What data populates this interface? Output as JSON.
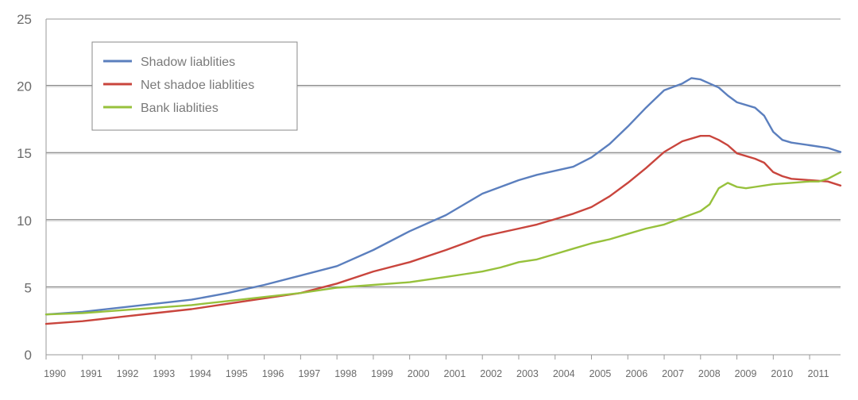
{
  "chart_data": {
    "type": "line",
    "title": "",
    "xlabel": "",
    "ylabel": "",
    "ylim": [
      0,
      25
    ],
    "xlim": [
      1990.0,
      2011.85
    ],
    "y_ticks": [
      0,
      5,
      10,
      15,
      20,
      25
    ],
    "x_tick_labels": [
      "1990",
      "1991",
      "1992",
      "1993",
      "1994",
      "1995",
      "1996",
      "1997",
      "1998",
      "1999",
      "2000",
      "2001",
      "2002",
      "2003",
      "2004",
      "2005",
      "2006",
      "2007",
      "2008",
      "2009",
      "2010",
      "2011"
    ],
    "grid": "horizontal",
    "legend_position": "top-left",
    "series": [
      {
        "name": "Shadow liablities",
        "color": "#5b7fbe",
        "x": [
          1990.0,
          1991.0,
          1992.0,
          1993.0,
          1994.0,
          1995.0,
          1996.0,
          1997.0,
          1998.0,
          1999.0,
          2000.0,
          2001.0,
          2001.5,
          2002.0,
          2002.5,
          2003.0,
          2003.5,
          2004.0,
          2004.5,
          2005.0,
          2005.5,
          2006.0,
          2006.5,
          2007.0,
          2007.5,
          2007.75,
          2008.0,
          2008.25,
          2008.5,
          2008.75,
          2009.0,
          2009.5,
          2009.75,
          2010.0,
          2010.25,
          2010.5,
          2011.0,
          2011.5,
          2011.85
        ],
        "values": [
          3.0,
          3.2,
          3.5,
          3.8,
          4.1,
          4.6,
          5.2,
          5.9,
          6.6,
          7.8,
          9.2,
          10.4,
          11.2,
          12.0,
          12.5,
          13.0,
          13.4,
          13.7,
          14.0,
          14.7,
          15.7,
          17.0,
          18.4,
          19.7,
          20.2,
          20.6,
          20.5,
          20.2,
          19.9,
          19.3,
          18.8,
          18.4,
          17.8,
          16.6,
          16.0,
          15.8,
          15.6,
          15.4,
          15.1
        ]
      },
      {
        "name": "Net shadoe liablities",
        "color": "#c9453d",
        "x": [
          1990.0,
          1991.0,
          1992.0,
          1993.0,
          1994.0,
          1995.0,
          1996.0,
          1997.0,
          1998.0,
          1999.0,
          2000.0,
          2001.0,
          2001.5,
          2002.0,
          2002.5,
          2003.0,
          2003.5,
          2004.0,
          2004.5,
          2005.0,
          2005.5,
          2006.0,
          2006.5,
          2007.0,
          2007.5,
          2008.0,
          2008.25,
          2008.5,
          2008.75,
          2009.0,
          2009.5,
          2009.75,
          2010.0,
          2010.25,
          2010.5,
          2011.0,
          2011.5,
          2011.85
        ],
        "values": [
          2.3,
          2.5,
          2.8,
          3.1,
          3.4,
          3.8,
          4.2,
          4.6,
          5.3,
          6.2,
          6.9,
          7.8,
          8.3,
          8.8,
          9.1,
          9.4,
          9.7,
          10.1,
          10.5,
          11.0,
          11.8,
          12.8,
          13.9,
          15.1,
          15.9,
          16.3,
          16.3,
          16.0,
          15.6,
          15.0,
          14.6,
          14.3,
          13.6,
          13.3,
          13.1,
          13.0,
          12.9,
          12.6
        ]
      },
      {
        "name": "Bank liablities",
        "color": "#97c13c",
        "x": [
          1990.0,
          1991.0,
          1992.0,
          1993.0,
          1994.0,
          1995.0,
          1996.0,
          1997.0,
          1998.0,
          1999.0,
          2000.0,
          2001.0,
          2001.5,
          2002.0,
          2002.5,
          2003.0,
          2003.5,
          2004.0,
          2004.5,
          2005.0,
          2005.5,
          2006.0,
          2006.5,
          2007.0,
          2007.5,
          2008.0,
          2008.25,
          2008.5,
          2008.75,
          2009.0,
          2009.25,
          2009.5,
          2010.0,
          2010.5,
          2011.0,
          2011.25,
          2011.5,
          2011.85
        ],
        "values": [
          3.0,
          3.1,
          3.3,
          3.5,
          3.7,
          4.0,
          4.3,
          4.6,
          5.0,
          5.2,
          5.4,
          5.8,
          6.0,
          6.2,
          6.5,
          6.9,
          7.1,
          7.5,
          7.9,
          8.3,
          8.6,
          9.0,
          9.4,
          9.7,
          10.2,
          10.7,
          11.2,
          12.4,
          12.8,
          12.5,
          12.4,
          12.5,
          12.7,
          12.8,
          12.9,
          12.9,
          13.1,
          13.6
        ]
      }
    ]
  }
}
